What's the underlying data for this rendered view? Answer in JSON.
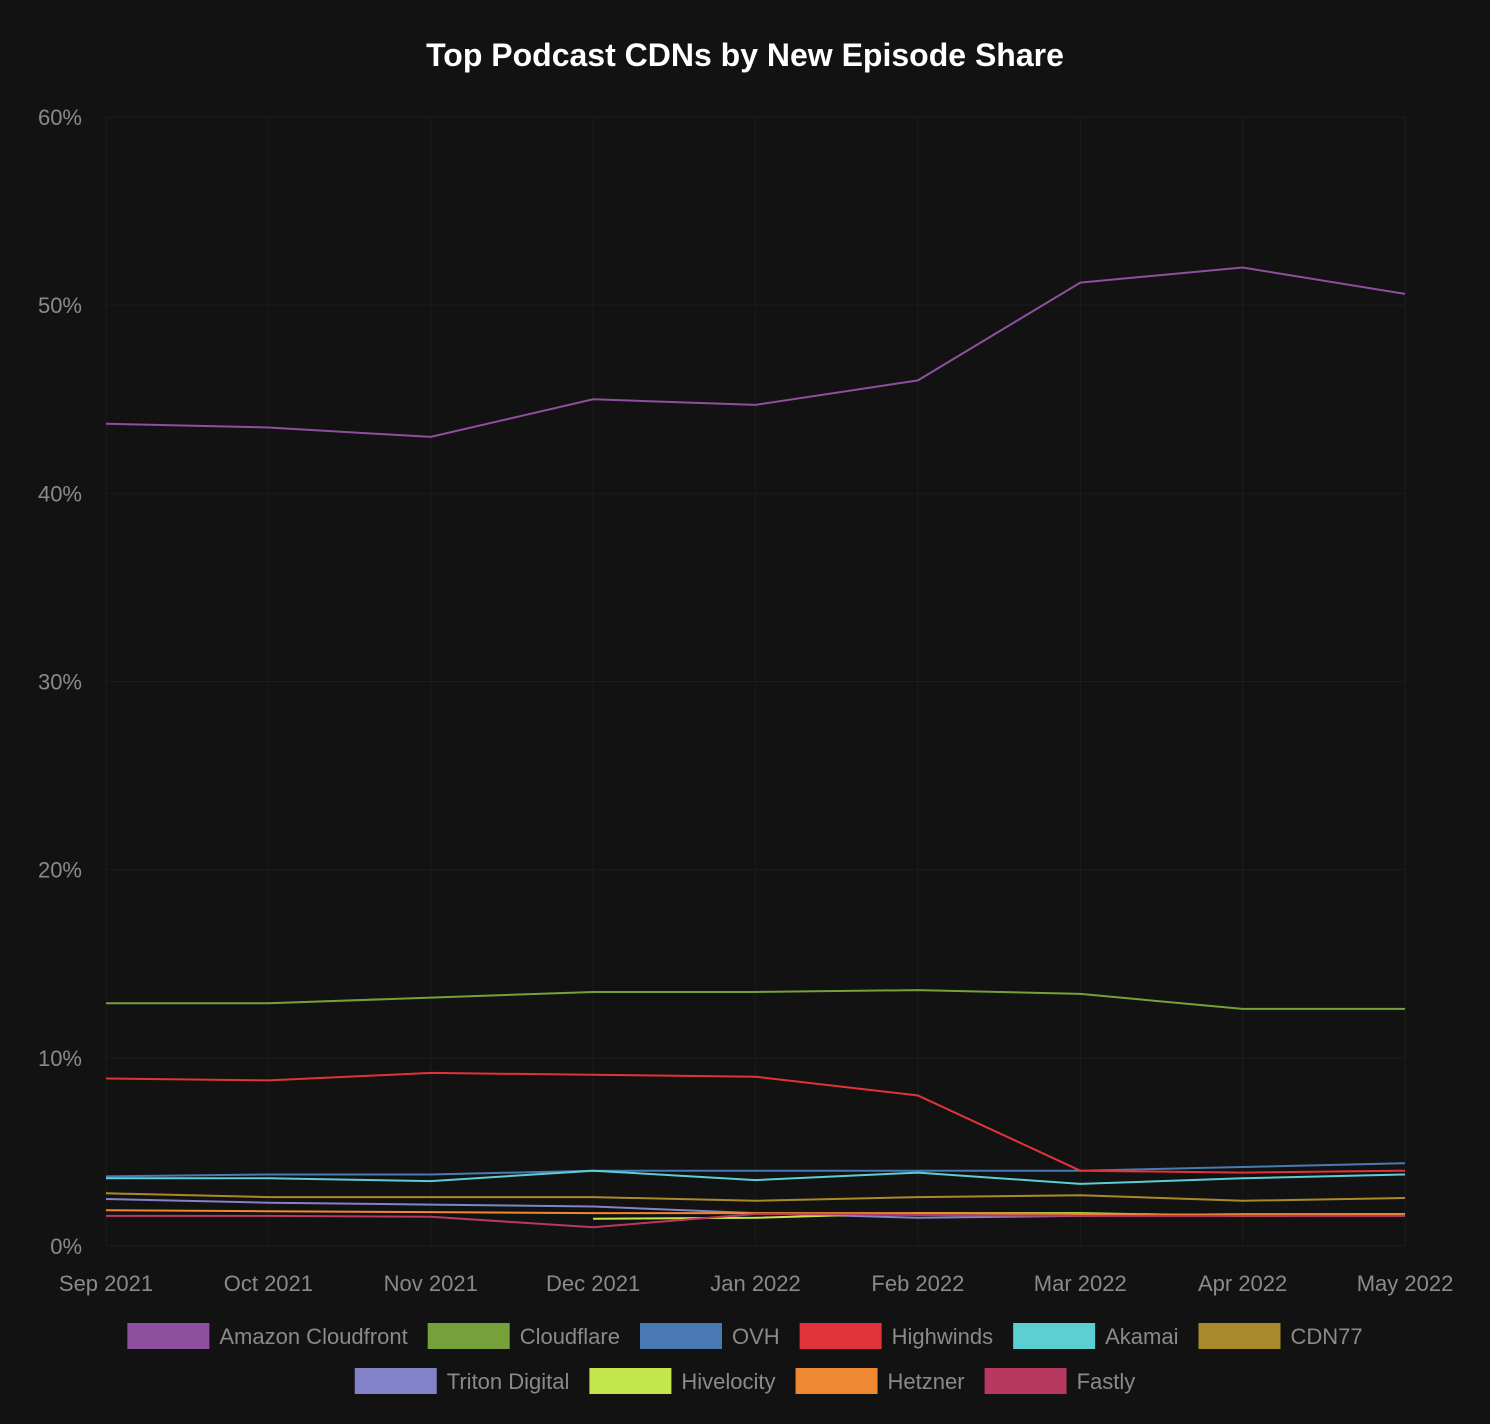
{
  "chart_data": {
    "type": "line",
    "title": "Top Podcast CDNs by New Episode Share",
    "xlabel": "",
    "ylabel": "",
    "categories": [
      "Sep 2021",
      "Oct 2021",
      "Nov 2021",
      "Dec 2021",
      "Jan 2022",
      "Feb 2022",
      "Mar 2022",
      "Apr 2022",
      "May 2022"
    ],
    "ylim": [
      0,
      60
    ],
    "yticks": [
      "0%",
      "10%",
      "20%",
      "30%",
      "40%",
      "50%",
      "60%"
    ],
    "grid": true,
    "legend_position": "bottom",
    "series": [
      {
        "name": "Amazon Cloudfront",
        "color": "#8e4f9e",
        "values": [
          43.7,
          43.5,
          43.0,
          45.0,
          44.7,
          46.0,
          51.2,
          52.0,
          50.6
        ]
      },
      {
        "name": "Cloudflare",
        "color": "#76a13a",
        "values": [
          12.9,
          12.9,
          13.2,
          13.5,
          13.5,
          13.6,
          13.4,
          12.6,
          12.6
        ]
      },
      {
        "name": "OVH",
        "color": "#4a7ab3",
        "values": [
          3.7,
          3.8,
          3.8,
          4.0,
          4.0,
          4.0,
          4.0,
          4.2,
          4.4
        ]
      },
      {
        "name": "Highwinds",
        "color": "#e3333a",
        "values": [
          8.9,
          8.8,
          9.2,
          9.1,
          9.0,
          8.0,
          4.0,
          3.9,
          4.0
        ]
      },
      {
        "name": "Akamai",
        "color": "#5bcfd2",
        "values": [
          3.6,
          3.6,
          3.45,
          4.0,
          3.5,
          3.9,
          3.3,
          3.6,
          3.8
        ]
      },
      {
        "name": "CDN77",
        "color": "#a98a2b",
        "values": [
          2.8,
          2.6,
          2.6,
          2.6,
          2.4,
          2.6,
          2.7,
          2.4,
          2.55
        ]
      },
      {
        "name": "Triton Digital",
        "color": "#8383c9",
        "values": [
          2.5,
          2.3,
          2.2,
          2.1,
          1.75,
          1.5,
          1.6,
          1.7,
          1.7
        ]
      },
      {
        "name": "Hivelocity",
        "color": "#c3e74a",
        "values": [
          null,
          null,
          null,
          1.45,
          1.5,
          1.75,
          1.75,
          1.6,
          1.65
        ]
      },
      {
        "name": "Hetzner",
        "color": "#ef8832",
        "values": [
          1.9,
          1.85,
          1.8,
          1.75,
          1.75,
          1.75,
          1.7,
          1.65,
          1.7
        ]
      },
      {
        "name": "Fastly",
        "color": "#b8395f",
        "values": [
          1.6,
          1.6,
          1.55,
          1.0,
          1.7,
          1.65,
          1.6,
          1.6,
          1.6
        ]
      }
    ]
  }
}
